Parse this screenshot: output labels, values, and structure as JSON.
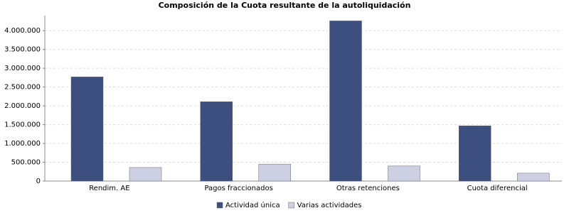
{
  "chart_data": {
    "type": "bar",
    "title": "Composición de la Cuota resultante de la autoliquidación",
    "categories": [
      "Rendim. AE",
      "Pagos fraccionados",
      "Otras retenciones",
      "Cuota diferencial"
    ],
    "series": [
      {
        "name": "Actividad única",
        "color": "#3d4f7f",
        "values": [
          2770000,
          2110000,
          4260000,
          1470000
        ]
      },
      {
        "name": "Varias actividades",
        "color": "#cdd0e3",
        "values": [
          360000,
          450000,
          400000,
          210000
        ]
      }
    ],
    "ylim": [
      0,
      4400000
    ],
    "yticks": [
      0,
      {
        "value": 500000,
        "label": "500.000"
      },
      {
        "value": 1000000,
        "label": "1.000.000"
      },
      {
        "value": 1500000,
        "label": "1.500.000"
      },
      {
        "value": 2000000,
        "label": "2.000.000"
      },
      {
        "value": 2500000,
        "label": "2.500.000"
      },
      {
        "value": 3000000,
        "label": "3.000.000"
      },
      {
        "value": 3500000,
        "label": "3.500.000"
      },
      {
        "value": 4000000,
        "label": "4.000.000"
      }
    ],
    "grid": true,
    "legend": "bottom"
  }
}
